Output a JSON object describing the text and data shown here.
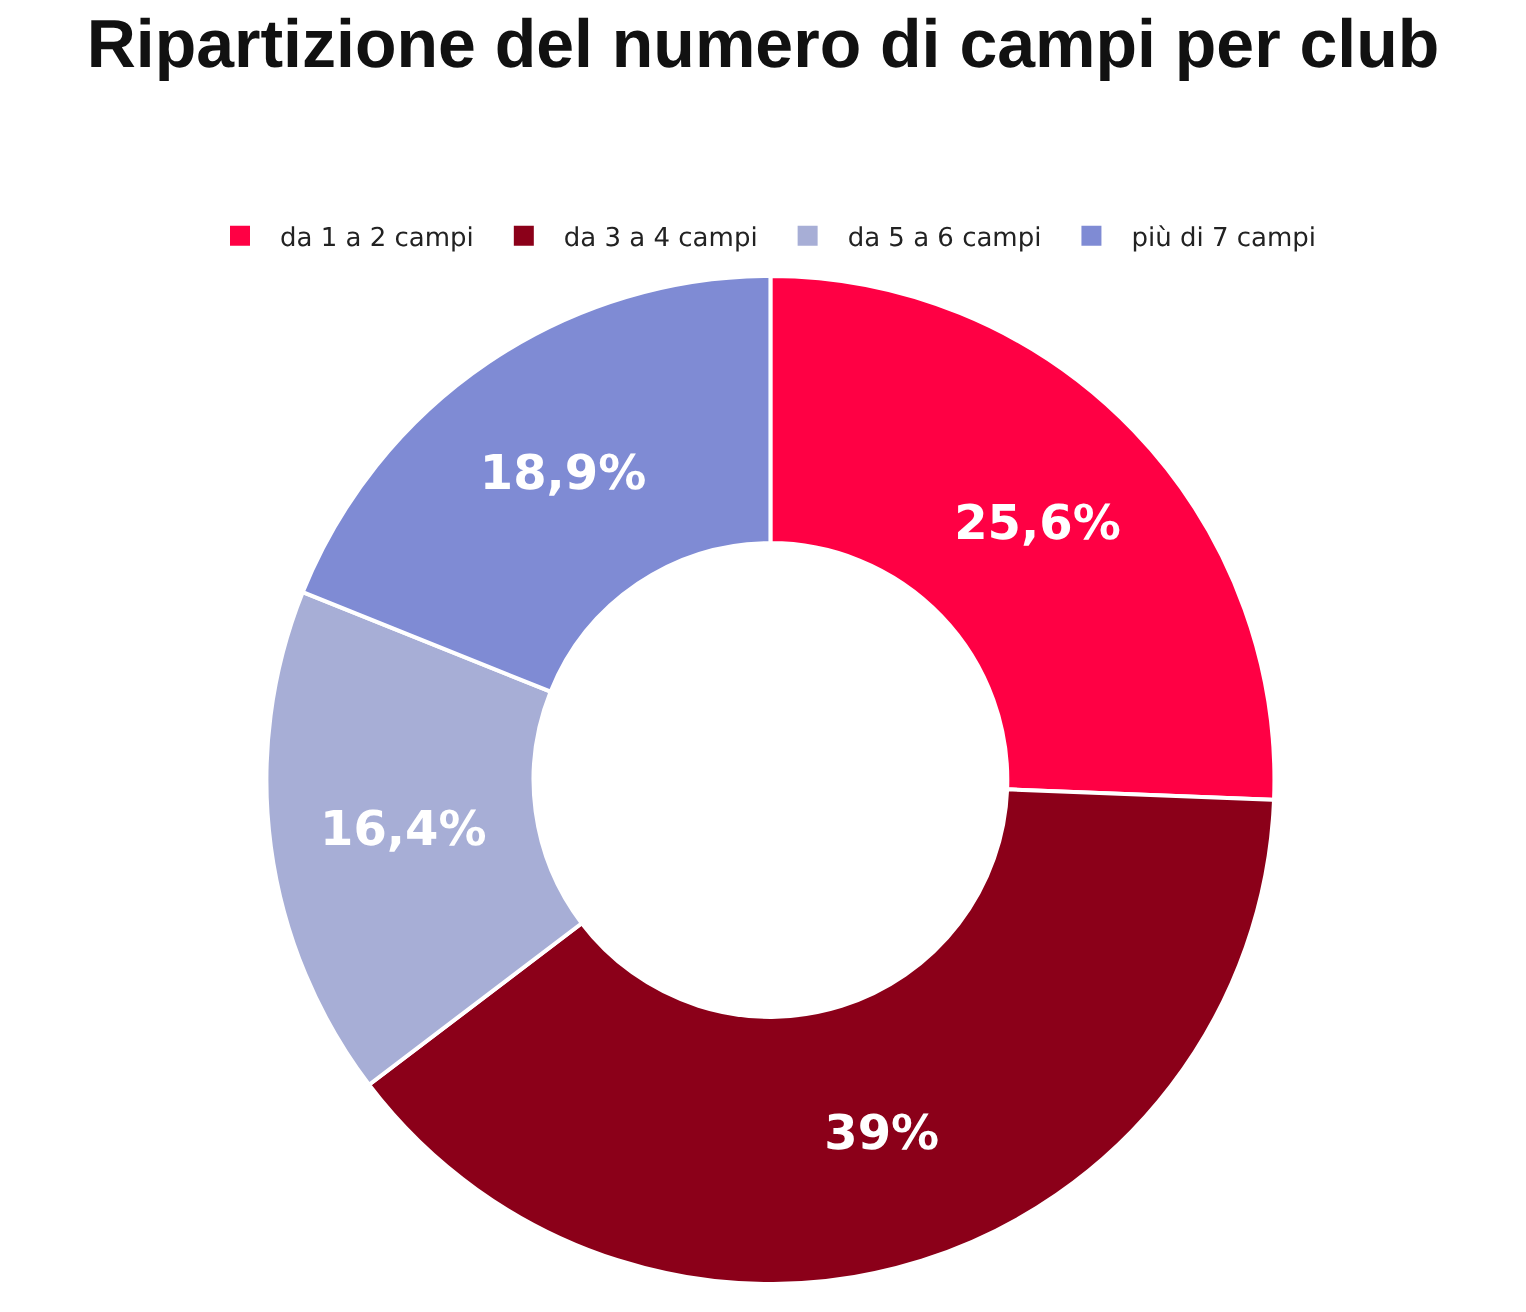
{
  "chart_data": {
    "type": "donut",
    "title": "Ripartizione del numero di campi per club",
    "categories": [
      "da 1 a 2 campi",
      "da 3 a 4 campi",
      "da 5 a 6 campi",
      "più di 7 campi"
    ],
    "values": [
      25.6,
      39,
      16.4,
      18.9
    ],
    "value_labels": [
      "25,6%",
      "39%",
      "16,4%",
      "18,9%"
    ],
    "colors": [
      "#ff0044",
      "#8b0019",
      "#a7aed6",
      "#7f8bd4"
    ],
    "legend": "top"
  }
}
